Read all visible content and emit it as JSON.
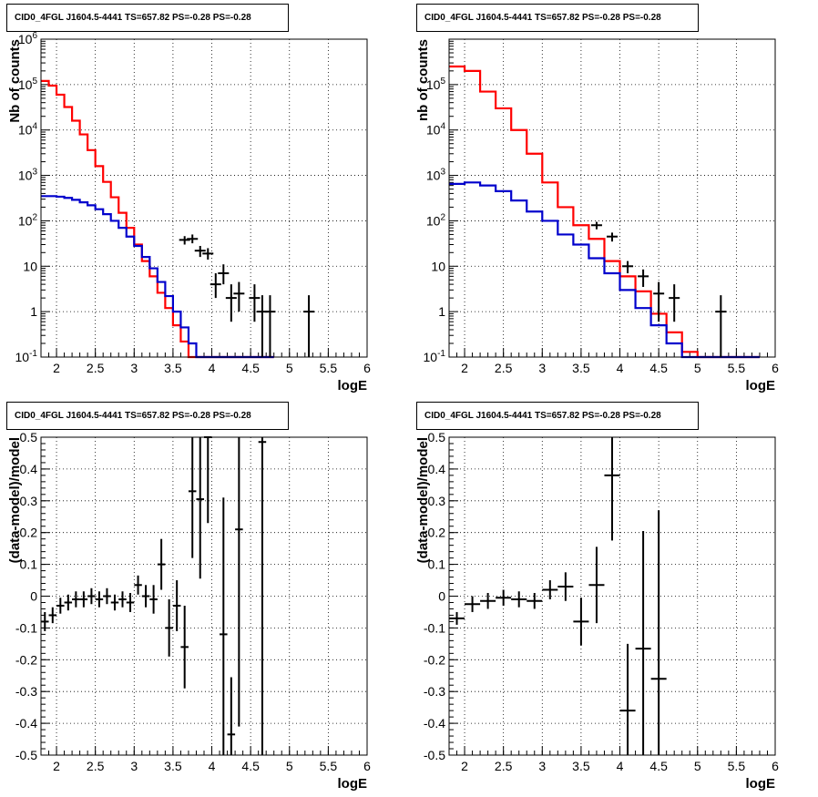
{
  "panel_title": "CID0_4FGL J1604.5-4441 TS=657.82 PS=-0.28 PS=-0.28",
  "chart_data": [
    {
      "type": "line",
      "title": "CID0_4FGL J1604.5-4441 TS=657.82 PS=-0.28 PS=-0.28",
      "xlabel": "logE",
      "ylabel": "Nb of counts",
      "xlim": [
        1.8,
        6.0
      ],
      "ylim": [
        0.1,
        1000000
      ],
      "yscale": "log",
      "grid": true,
      "x_ticks": [
        "2",
        "2.5",
        "3",
        "3.5",
        "4",
        "4.5",
        "5",
        "5.5",
        "6"
      ],
      "y_ticks": [
        "10^-1",
        "1",
        "10",
        "10^2",
        "10^3",
        "10^4",
        "10^5",
        "10^6"
      ],
      "bin_edges": [
        1.8,
        1.9,
        2.0,
        2.1,
        2.2,
        2.3,
        2.4,
        2.5,
        2.6,
        2.7,
        2.8,
        2.9,
        3.0,
        3.1,
        3.2,
        3.3,
        3.4,
        3.5,
        3.6,
        3.7,
        3.8,
        3.9,
        4.0,
        4.1,
        4.2,
        4.3,
        4.4,
        4.5,
        4.6,
        4.7,
        4.8,
        4.9,
        5.0,
        5.1,
        5.2,
        5.3,
        5.4,
        5.5,
        5.6,
        5.7,
        5.8,
        5.9,
        6.0
      ],
      "series": [
        {
          "color": "#ff0000",
          "values": [
            120000,
            95000,
            60000,
            32000,
            16000,
            8000,
            3600,
            1600,
            720,
            330,
            150,
            70,
            30,
            13,
            6,
            2.6,
            1.2,
            0.5,
            0.22,
            0.1,
            0.1,
            0.1,
            0.1,
            0.1,
            0.1,
            0.1,
            0.1,
            0.1,
            0.1,
            0.1
          ]
        },
        {
          "color": "#0000cc",
          "values": [
            350,
            350,
            340,
            320,
            290,
            255,
            220,
            180,
            140,
            100,
            70,
            45,
            28,
            16,
            9,
            4.5,
            2.2,
            1.0,
            0.45,
            0.2,
            0.1,
            0.1,
            0.1,
            0.1,
            0.1,
            0.1,
            0.1,
            0.1,
            0.1,
            0.1
          ]
        }
      ],
      "data_points": [
        {
          "x": 3.65,
          "y": 38,
          "ylo": 30,
          "yhi": 46
        },
        {
          "x": 3.75,
          "y": 40,
          "ylo": 32,
          "yhi": 50
        },
        {
          "x": 3.85,
          "y": 22,
          "ylo": 16,
          "yhi": 28
        },
        {
          "x": 3.95,
          "y": 19,
          "ylo": 14,
          "yhi": 25
        },
        {
          "x": 4.05,
          "y": 4,
          "ylo": 2,
          "yhi": 7
        },
        {
          "x": 4.15,
          "y": 7,
          "ylo": 4,
          "yhi": 11
        },
        {
          "x": 4.25,
          "y": 2,
          "ylo": 0.6,
          "yhi": 4
        },
        {
          "x": 4.35,
          "y": 2.5,
          "ylo": 1,
          "yhi": 4.5
        },
        {
          "x": 4.55,
          "y": 2,
          "ylo": 0.6,
          "yhi": 4
        },
        {
          "x": 4.65,
          "y": 1,
          "ylo": 0.1,
          "yhi": 2.3
        },
        {
          "x": 4.75,
          "y": 1,
          "ylo": 0.1,
          "yhi": 2.3
        },
        {
          "x": 5.25,
          "y": 1,
          "ylo": 0.1,
          "yhi": 2.3
        }
      ]
    },
    {
      "type": "line",
      "title": "CID0_4FGL J1604.5-4441 TS=657.82 PS=-0.28 PS=-0.28",
      "xlabel": "logE",
      "ylabel": "nb of counts",
      "xlim": [
        1.8,
        6.0
      ],
      "ylim": [
        0.1,
        1000000
      ],
      "yscale": "log",
      "grid": true,
      "x_ticks": [
        "2",
        "2.5",
        "3",
        "3.5",
        "4",
        "4.5",
        "5",
        "5.5",
        "6"
      ],
      "y_ticks": [
        "10^-1",
        "1",
        "10",
        "10^2",
        "10^3",
        "10^4",
        "10^5"
      ],
      "bin_edges": [
        1.8,
        2.0,
        2.2,
        2.4,
        2.6,
        2.8,
        3.0,
        3.2,
        3.4,
        3.6,
        3.8,
        4.0,
        4.2,
        4.4,
        4.6,
        4.8,
        5.0,
        5.2,
        5.4,
        5.6,
        5.8,
        6.0
      ],
      "series": [
        {
          "color": "#ff0000",
          "values": [
            250000,
            200000,
            70000,
            30000,
            10000,
            3000,
            700,
            200,
            80,
            40,
            13,
            6,
            2.8,
            0.9,
            0.35,
            0.13,
            0.1,
            0.1,
            0.1,
            0.1
          ]
        },
        {
          "color": "#0000cc",
          "values": [
            650,
            700,
            600,
            450,
            280,
            160,
            100,
            50,
            30,
            15,
            7,
            3,
            1.2,
            0.5,
            0.2,
            0.1,
            0.1,
            0.1,
            0.1,
            0.1
          ]
        }
      ],
      "data_points": [
        {
          "x": 3.7,
          "y": 80,
          "ylo": 65,
          "yhi": 95
        },
        {
          "x": 3.9,
          "y": 45,
          "ylo": 35,
          "yhi": 55
        },
        {
          "x": 4.1,
          "y": 10,
          "ylo": 7,
          "yhi": 13
        },
        {
          "x": 4.3,
          "y": 6,
          "ylo": 3.5,
          "yhi": 8.5
        },
        {
          "x": 4.5,
          "y": 2.5,
          "ylo": 0.6,
          "yhi": 4.5
        },
        {
          "x": 4.7,
          "y": 2,
          "ylo": 0.6,
          "yhi": 4
        },
        {
          "x": 5.3,
          "y": 1,
          "ylo": 0.1,
          "yhi": 2.3
        }
      ]
    },
    {
      "type": "scatter",
      "title": "CID0_4FGL J1604.5-4441 TS=657.82 PS=-0.28 PS=-0.28",
      "xlabel": "logE",
      "ylabel": "(data-model)/model",
      "xlim": [
        1.8,
        6.0
      ],
      "ylim": [
        -0.5,
        0.5
      ],
      "grid": true,
      "x_ticks": [
        "2",
        "2.5",
        "3",
        "3.5",
        "4",
        "4.5",
        "5",
        "5.5",
        "6"
      ],
      "y_ticks": [
        "-0.5",
        "-0.4",
        "-0.3",
        "-0.2",
        "-0.1",
        "0",
        "0.1",
        "0.2",
        "0.3",
        "0.4",
        "0.5"
      ],
      "points": [
        {
          "x": 1.85,
          "y": -0.08,
          "err": 0.03,
          "xerr": 0.05
        },
        {
          "x": 1.95,
          "y": -0.06,
          "err": 0.025,
          "xerr": 0.05
        },
        {
          "x": 2.05,
          "y": -0.03,
          "err": 0.025,
          "xerr": 0.05
        },
        {
          "x": 2.15,
          "y": -0.02,
          "err": 0.025,
          "xerr": 0.05
        },
        {
          "x": 2.25,
          "y": -0.01,
          "err": 0.025,
          "xerr": 0.05
        },
        {
          "x": 2.35,
          "y": -0.01,
          "err": 0.025,
          "xerr": 0.05
        },
        {
          "x": 2.45,
          "y": 0.0,
          "err": 0.025,
          "xerr": 0.05
        },
        {
          "x": 2.55,
          "y": -0.01,
          "err": 0.025,
          "xerr": 0.05
        },
        {
          "x": 2.65,
          "y": 0.0,
          "err": 0.025,
          "xerr": 0.05
        },
        {
          "x": 2.75,
          "y": -0.02,
          "err": 0.025,
          "xerr": 0.05
        },
        {
          "x": 2.85,
          "y": -0.01,
          "err": 0.025,
          "xerr": 0.05
        },
        {
          "x": 2.95,
          "y": -0.02,
          "err": 0.03,
          "xerr": 0.05
        },
        {
          "x": 3.05,
          "y": 0.035,
          "err": 0.03,
          "xerr": 0.05
        },
        {
          "x": 3.15,
          "y": 0.0,
          "err": 0.035,
          "xerr": 0.05
        },
        {
          "x": 3.25,
          "y": -0.01,
          "err": 0.045,
          "xerr": 0.05
        },
        {
          "x": 3.35,
          "y": 0.1,
          "err": 0.08,
          "xerr": 0.05
        },
        {
          "x": 3.45,
          "y": -0.1,
          "err": 0.09,
          "xerr": 0.05
        },
        {
          "x": 3.55,
          "y": -0.03,
          "err": 0.08,
          "xerr": 0.05
        },
        {
          "x": 3.65,
          "y": -0.16,
          "err": 0.13,
          "xerr": 0.05
        },
        {
          "x": 3.75,
          "y": 0.33,
          "err": 0.21,
          "xerr": 0.05
        },
        {
          "x": 3.85,
          "y": 0.305,
          "err": 0.25,
          "xerr": 0.05
        },
        {
          "x": 3.95,
          "y": 0.5,
          "err": 0.27,
          "xerr": 0.05
        },
        {
          "x": 4.15,
          "y": -0.12,
          "err": 0.43,
          "xerr": 0.05
        },
        {
          "x": 4.25,
          "y": -0.435,
          "err": 0.18,
          "xerr": 0.05
        },
        {
          "x": 4.35,
          "y": 0.21,
          "err": 0.62,
          "xerr": 0.05
        },
        {
          "x": 4.65,
          "y": 0.485,
          "err": 1.0,
          "xerr": 0.05
        }
      ]
    },
    {
      "type": "scatter",
      "title": "CID0_4FGL J1604.5-4441 TS=657.82 PS=-0.28 PS=-0.28",
      "xlabel": "logE",
      "ylabel": "(data-model)/model",
      "xlim": [
        1.8,
        6.0
      ],
      "ylim": [
        -0.5,
        0.5
      ],
      "grid": true,
      "x_ticks": [
        "2",
        "2.5",
        "3",
        "3.5",
        "4",
        "4.5",
        "5",
        "5.5",
        "6"
      ],
      "y_ticks": [
        "-0.5",
        "-0.4",
        "-0.3",
        "-0.2",
        "-0.1",
        "0",
        "0.1",
        "0.2",
        "0.3",
        "0.4",
        "0.5"
      ],
      "points": [
        {
          "x": 1.9,
          "y": -0.07,
          "err": 0.02,
          "xerr": 0.1
        },
        {
          "x": 2.1,
          "y": -0.025,
          "err": 0.025,
          "xerr": 0.1
        },
        {
          "x": 2.3,
          "y": -0.015,
          "err": 0.025,
          "xerr": 0.1
        },
        {
          "x": 2.5,
          "y": -0.005,
          "err": 0.025,
          "xerr": 0.1
        },
        {
          "x": 2.7,
          "y": -0.01,
          "err": 0.025,
          "xerr": 0.1
        },
        {
          "x": 2.9,
          "y": -0.015,
          "err": 0.025,
          "xerr": 0.1
        },
        {
          "x": 3.1,
          "y": 0.02,
          "err": 0.03,
          "xerr": 0.1
        },
        {
          "x": 3.3,
          "y": 0.03,
          "err": 0.045,
          "xerr": 0.1
        },
        {
          "x": 3.5,
          "y": -0.08,
          "err": 0.075,
          "xerr": 0.1
        },
        {
          "x": 3.7,
          "y": 0.035,
          "err": 0.12,
          "xerr": 0.1
        },
        {
          "x": 3.9,
          "y": 0.38,
          "err": 0.205,
          "xerr": 0.1
        },
        {
          "x": 4.1,
          "y": -0.36,
          "err": 0.21,
          "xerr": 0.1
        },
        {
          "x": 4.3,
          "y": -0.165,
          "err": 0.37,
          "xerr": 0.1
        },
        {
          "x": 4.5,
          "y": -0.26,
          "err": 0.53,
          "xerr": 0.1
        }
      ]
    }
  ]
}
